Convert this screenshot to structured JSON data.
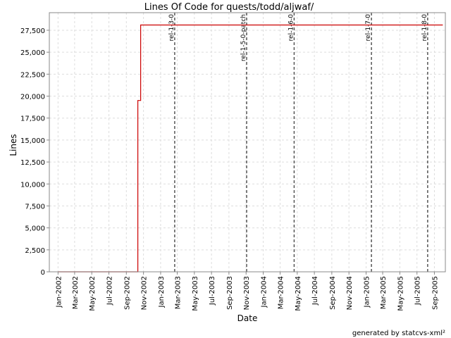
{
  "chart_data": {
    "type": "line",
    "title": "Lines Of Code for quests/todd/aljwaf/",
    "xlabel": "Date",
    "ylabel": "Lines",
    "xlim": [
      "2001-12-01",
      "2005-10-10"
    ],
    "ylim": [
      0,
      29500
    ],
    "y_ticks": [
      0,
      2500,
      5000,
      7500,
      10000,
      12500,
      15000,
      17500,
      20000,
      22500,
      25000,
      27500
    ],
    "y_tick_labels": [
      "0",
      "2,500",
      "5,000",
      "7,500",
      "10,000",
      "12,500",
      "15,000",
      "17,500",
      "20,000",
      "22,500",
      "25,000",
      "27,500"
    ],
    "x_ticks": [
      "2002-01-01",
      "2002-03-01",
      "2002-05-01",
      "2002-07-01",
      "2002-09-01",
      "2002-11-01",
      "2003-01-01",
      "2003-03-01",
      "2003-05-01",
      "2003-07-01",
      "2003-09-01",
      "2003-11-01",
      "2004-01-01",
      "2004-03-01",
      "2004-05-01",
      "2004-07-01",
      "2004-09-01",
      "2004-11-01",
      "2005-01-01",
      "2005-03-01",
      "2005-05-01",
      "2005-07-01",
      "2005-09-01"
    ],
    "x_tick_labels": [
      "Jan-2002",
      "Mar-2002",
      "May-2002",
      "Jul-2002",
      "Sep-2002",
      "Nov-2002",
      "Jan-2003",
      "Mar-2003",
      "May-2003",
      "Jul-2003",
      "Sep-2003",
      "Nov-2003",
      "Jan-2004",
      "Mar-2004",
      "May-2004",
      "Jul-2004",
      "Sep-2004",
      "Nov-2004",
      "Jan-2005",
      "Mar-2005",
      "May-2005",
      "Jul-2005",
      "Sep-2005"
    ],
    "grid": true,
    "series": [
      {
        "color": "#cc0000",
        "step": true,
        "x": [
          "2002-01-01",
          "2002-10-12",
          "2002-10-12",
          "2002-10-22",
          "2002-10-22",
          "2005-10-01"
        ],
        "y": [
          0,
          0,
          19500,
          19500,
          28100,
          28100
        ]
      }
    ],
    "markers": [
      {
        "date": "2003-02-20",
        "label": "rel-1-3-0"
      },
      {
        "date": "2003-11-03",
        "label": "rel-1-5-0-patch"
      },
      {
        "date": "2004-04-20",
        "label": "rel-1-6-0"
      },
      {
        "date": "2005-01-20",
        "label": "rel-1-7-0"
      },
      {
        "date": "2005-08-08",
        "label": "rel-1-8-0"
      }
    ],
    "marker_color": "#555555"
  },
  "footer": "generated by statcvs-xml²"
}
